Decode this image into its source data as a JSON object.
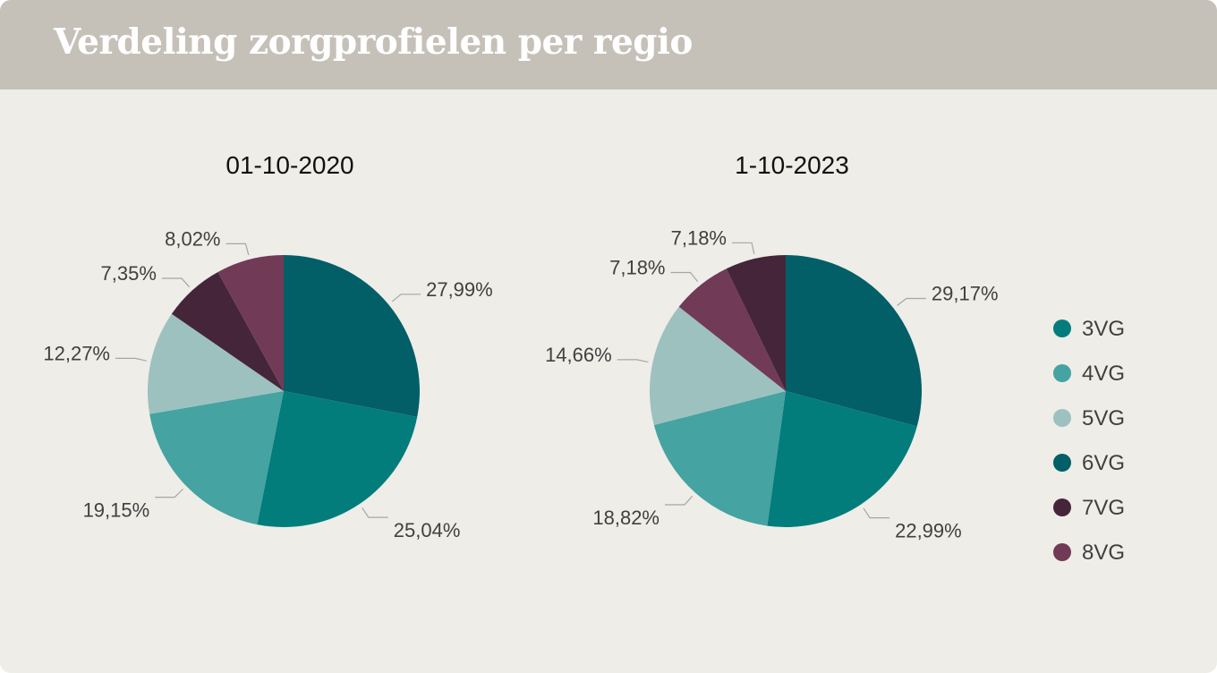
{
  "header": {
    "title": "Verdeling zorgprofielen per regio"
  },
  "colors": {
    "3VG": "#037c7c",
    "4VG": "#45a3a1",
    "5VG": "#9dc1bf",
    "6VG": "#025e67",
    "7VG": "#45253a",
    "8VG": "#713a57",
    "banner": "#c5c1b9",
    "background": "#eeede8",
    "text": "#404040",
    "leader": "#a6a6a6"
  },
  "chart_data": [
    {
      "type": "pie",
      "title": "01-10-2020",
      "slices": [
        {
          "category": "6VG",
          "value": 27.99,
          "label": "27,99%"
        },
        {
          "category": "3VG",
          "value": 25.04,
          "label": "25,04%"
        },
        {
          "category": "4VG",
          "value": 19.15,
          "label": "19,15%"
        },
        {
          "category": "5VG",
          "value": 12.27,
          "label": "12,27%"
        },
        {
          "category": "7VG",
          "value": 7.35,
          "label": "7,35%"
        },
        {
          "category": "8VG",
          "value": 8.02,
          "label": "8,02%"
        }
      ]
    },
    {
      "type": "pie",
      "title": "1-10-2023",
      "slices": [
        {
          "category": "6VG",
          "value": 29.17,
          "label": "29,17%"
        },
        {
          "category": "3VG",
          "value": 22.99,
          "label": "22,99%"
        },
        {
          "category": "4VG",
          "value": 18.82,
          "label": "18,82%"
        },
        {
          "category": "5VG",
          "value": 14.66,
          "label": "14,66%"
        },
        {
          "category": "8VG",
          "value": 7.18,
          "label": "7,18%"
        },
        {
          "category": "7VG",
          "value": 7.18,
          "label": "7,18%"
        }
      ]
    }
  ],
  "legend": {
    "placement": "right",
    "items": [
      "3VG",
      "4VG",
      "5VG",
      "6VG",
      "7VG",
      "8VG"
    ]
  }
}
